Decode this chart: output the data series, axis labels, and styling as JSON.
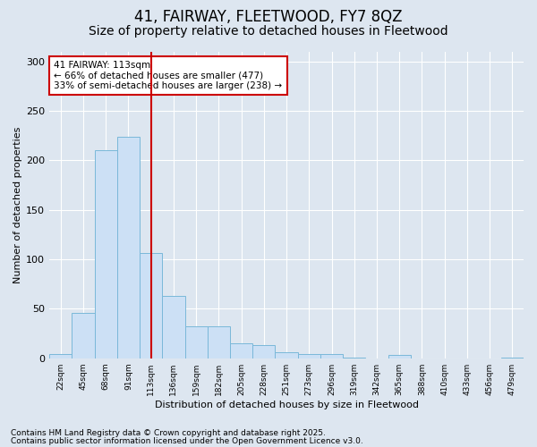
{
  "title1": "41, FAIRWAY, FLEETWOOD, FY7 8QZ",
  "title2": "Size of property relative to detached houses in Fleetwood",
  "xlabel": "Distribution of detached houses by size in Fleetwood",
  "ylabel": "Number of detached properties",
  "categories": [
    "22sqm",
    "45sqm",
    "68sqm",
    "91sqm",
    "113sqm",
    "136sqm",
    "159sqm",
    "182sqm",
    "205sqm",
    "228sqm",
    "251sqm",
    "273sqm",
    "296sqm",
    "319sqm",
    "342sqm",
    "365sqm",
    "388sqm",
    "410sqm",
    "433sqm",
    "456sqm",
    "479sqm"
  ],
  "values": [
    4,
    46,
    210,
    224,
    106,
    63,
    32,
    32,
    15,
    13,
    6,
    4,
    4,
    1,
    0,
    3,
    0,
    0,
    0,
    0,
    1
  ],
  "bar_color": "#cce0f5",
  "bar_edge_color": "#7ab8d9",
  "vline_x_idx": 4,
  "vline_color": "#cc0000",
  "annotation_text": "41 FAIRWAY: 113sqm\n← 66% of detached houses are smaller (477)\n33% of semi-detached houses are larger (238) →",
  "annotation_box_facecolor": "#ffffff",
  "annotation_box_edgecolor": "#cc0000",
  "footnote1": "Contains HM Land Registry data © Crown copyright and database right 2025.",
  "footnote2": "Contains public sector information licensed under the Open Government Licence v3.0.",
  "background_color": "#dde6f0",
  "plot_background": "#dde6f0",
  "title1_fontsize": 12,
  "title2_fontsize": 10,
  "ylabel_fontsize": 8,
  "xlabel_fontsize": 8,
  "ylim": [
    0,
    310
  ],
  "yticks": [
    0,
    50,
    100,
    150,
    200,
    250,
    300
  ],
  "footnote_fontsize": 6.5
}
